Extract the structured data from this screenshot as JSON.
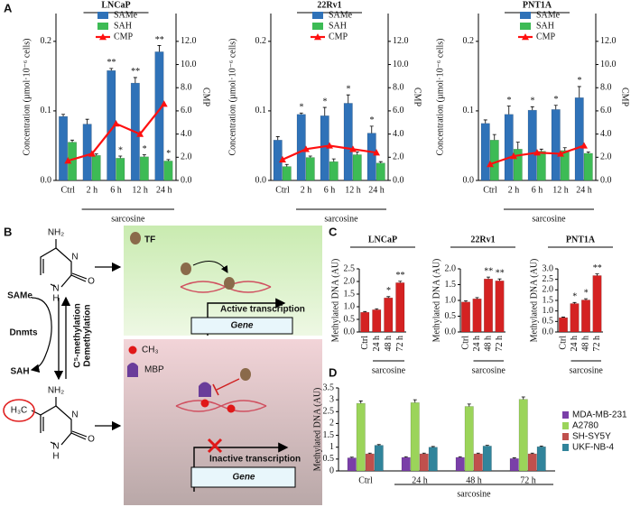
{
  "panels": [
    "A",
    "B",
    "C",
    "D"
  ],
  "diagram": {
    "tf": "TF",
    "same": "SAMe",
    "sah": "SAH",
    "dnmts": "Dnmts",
    "methylation": "C⁵-methylation",
    "demethylation": "Demethylation",
    "active": "Active transcription",
    "inactive": "Inactive transcription",
    "gene": "Gene",
    "ch3": "CH₃",
    "mbp": "MBP",
    "h3c": "H₃C",
    "nh2": "NH₂",
    "n": "N",
    "h": "H",
    "o": "O"
  },
  "chart_data": [
    {
      "type": "bar",
      "title": "LNCaP",
      "ylabel": "Concentration (µmol·10⁻⁶ cells)",
      "y2label": "CMP",
      "group_label": "sarcosine",
      "categories": [
        "Ctrl",
        "2 h",
        "6 h",
        "12 h",
        "24 h"
      ],
      "ylim": [
        0,
        0.24
      ],
      "yticks": [
        {
          "value": 0,
          "label": "0.0"
        },
        0.1,
        0.2
      ],
      "y2lim": [
        0,
        14.4
      ],
      "y2ticks": [
        {
          "value": 0,
          "label": "0.0"
        },
        {
          "value": 2,
          "label": "2.0"
        },
        {
          "value": 4,
          "label": "4.0"
        },
        {
          "value": 6,
          "label": "6.0"
        },
        {
          "value": 8,
          "label": "8.0"
        },
        {
          "value": 10,
          "label": "10.0"
        },
        {
          "value": 12,
          "label": "12.0"
        }
      ],
      "legend": "upper left",
      "grid": false,
      "series": [
        {
          "name": "SAMe",
          "color": "#2f72b8",
          "values": [
            0.092,
            0.081,
            0.158,
            0.14,
            0.185
          ],
          "errors": [
            0.003,
            0.007,
            0.003,
            0.008,
            0.009
          ],
          "annotations": [
            null,
            null,
            "**",
            "**",
            "**"
          ]
        },
        {
          "name": "SAH",
          "color": "#3dbb55",
          "values": [
            0.055,
            0.036,
            0.032,
            0.034,
            0.028
          ],
          "errors": [
            0.003,
            0.002,
            0.003,
            0.003,
            0.002
          ],
          "annotations": [
            null,
            null,
            "*",
            "*",
            "*"
          ]
        },
        {
          "name": "CMP",
          "color": "#ff1010",
          "type": "line",
          "axis": "y2",
          "values": [
            1.7,
            2.3,
            4.9,
            4.0,
            6.6
          ]
        }
      ]
    },
    {
      "type": "bar",
      "title": "22Rv1",
      "ylabel": "Concentration (µmol·10⁻⁶ cells)",
      "y2label": "CMP",
      "group_label": "sarcosine",
      "categories": [
        "Ctrl",
        "2 h",
        "6 h",
        "12 h",
        "24 h"
      ],
      "ylim": [
        0,
        0.24
      ],
      "yticks": [
        {
          "value": 0,
          "label": "0.0"
        },
        0.1,
        0.2
      ],
      "y2lim": [
        0,
        14.4
      ],
      "y2ticks": [
        {
          "value": 0,
          "label": "0.0"
        },
        {
          "value": 2,
          "label": "2.0"
        },
        {
          "value": 4,
          "label": "4.0"
        },
        {
          "value": 6,
          "label": "6.0"
        },
        {
          "value": 8,
          "label": "8.0"
        },
        {
          "value": 10,
          "label": "10.0"
        },
        {
          "value": 12,
          "label": "12.0"
        }
      ],
      "legend": "upper left",
      "grid": false,
      "series": [
        {
          "name": "SAMe",
          "color": "#2f72b8",
          "values": [
            0.058,
            0.095,
            0.093,
            0.111,
            0.068
          ],
          "errors": [
            0.005,
            0.002,
            0.012,
            0.012,
            0.01
          ],
          "annotations": [
            null,
            "*",
            "*",
            "*",
            "*"
          ]
        },
        {
          "name": "SAH",
          "color": "#3dbb55",
          "values": [
            0.02,
            0.033,
            0.027,
            0.037,
            0.025
          ],
          "errors": [
            0.003,
            0.002,
            0.004,
            0.004,
            0.002
          ]
        },
        {
          "name": "CMP",
          "color": "#ff1010",
          "type": "line",
          "axis": "y2",
          "values": [
            1.8,
            2.7,
            3.0,
            2.7,
            2.4
          ]
        }
      ]
    },
    {
      "type": "bar",
      "title": "PNT1A",
      "ylabel": "Concentration (µmol·10⁻⁶ cells)",
      "y2label": "CMP",
      "group_label": "sarcosine",
      "categories": [
        "Ctrl",
        "2 h",
        "6 h",
        "12 h",
        "24 h"
      ],
      "ylim": [
        0,
        0.24
      ],
      "yticks": [
        {
          "value": 0,
          "label": "0.0"
        },
        0.1,
        0.2
      ],
      "y2lim": [
        0,
        14.4
      ],
      "y2ticks": [
        {
          "value": 0,
          "label": "0.0"
        },
        {
          "value": 2,
          "label": "2.0"
        },
        {
          "value": 4,
          "label": "4.0"
        },
        {
          "value": 6,
          "label": "6.0"
        },
        {
          "value": 8,
          "label": "8.0"
        },
        {
          "value": 10,
          "label": "10.0"
        },
        {
          "value": 12,
          "label": "12.0"
        }
      ],
      "legend": "upper left",
      "grid": false,
      "series": [
        {
          "name": "SAMe",
          "color": "#2f72b8",
          "values": [
            0.082,
            0.095,
            0.101,
            0.102,
            0.119
          ],
          "errors": [
            0.005,
            0.012,
            0.005,
            0.006,
            0.016
          ],
          "annotations": [
            null,
            "*",
            "*",
            "*",
            "*"
          ]
        },
        {
          "name": "SAH",
          "color": "#3dbb55",
          "values": [
            0.058,
            0.045,
            0.042,
            0.043,
            0.039
          ],
          "errors": [
            0.008,
            0.01,
            0.003,
            0.004,
            0.002
          ]
        },
        {
          "name": "CMP",
          "color": "#ff1010",
          "type": "line",
          "axis": "y2",
          "values": [
            1.4,
            2.1,
            2.4,
            2.3,
            3.0
          ]
        }
      ]
    },
    {
      "type": "bar",
      "title": "LNCaP",
      "ylabel": "Methylated DNA (AU)",
      "group_label": "sarcosine",
      "categories": [
        "Ctrl",
        "24 h",
        "48 h",
        "72 h"
      ],
      "ylim": [
        0,
        2.5
      ],
      "yticks": [
        {
          "value": 0,
          "label": "0.0"
        },
        0.5,
        {
          "value": 1,
          "label": "1.0"
        },
        1.5,
        {
          "value": 2,
          "label": "2.0"
        },
        2.5
      ],
      "grid": false,
      "color": "#d42222",
      "values": [
        0.78,
        0.88,
        1.35,
        1.95
      ],
      "errors": [
        0.03,
        0.04,
        0.05,
        0.06
      ],
      "annotations": [
        null,
        null,
        "*",
        "**"
      ]
    },
    {
      "type": "bar",
      "title": "22Rv1",
      "ylabel": "Methylated DNA (AU)",
      "group_label": "sarcosine",
      "categories": [
        "Ctrl",
        "24 h",
        "48 h",
        "72 h"
      ],
      "ylim": [
        0,
        2
      ],
      "yticks": [
        {
          "value": 0,
          "label": "0.0"
        },
        0.5,
        {
          "value": 1,
          "label": "1.0"
        },
        1.5,
        {
          "value": 2,
          "label": "2.0"
        }
      ],
      "grid": false,
      "color": "#d42222",
      "values": [
        0.95,
        1.05,
        1.68,
        1.62
      ],
      "errors": [
        0.04,
        0.04,
        0.06,
        0.06
      ],
      "annotations": [
        null,
        null,
        "**",
        "**"
      ]
    },
    {
      "type": "bar",
      "title": "PNT1A",
      "ylabel": "Methylated DNA (AU)",
      "group_label": "sarcosine",
      "categories": [
        "Ctrl",
        "24 h",
        "48 h",
        "72 h"
      ],
      "ylim": [
        0,
        3
      ],
      "yticks": [
        {
          "value": 0,
          "label": "0.0"
        },
        0.5,
        {
          "value": 1,
          "label": "1.0"
        },
        1.5,
        {
          "value": 2,
          "label": "2.0"
        },
        2.5,
        {
          "value": 3,
          "label": "3.0"
        }
      ],
      "grid": false,
      "color": "#d42222",
      "values": [
        0.68,
        1.35,
        1.52,
        2.68
      ],
      "errors": [
        0.03,
        0.05,
        0.06,
        0.08
      ],
      "annotations": [
        null,
        "*",
        "*",
        "**"
      ]
    },
    {
      "type": "bar",
      "ylabel": "Methylated DNA (AU)",
      "group_label": "sarcosine",
      "categories": [
        "Ctrl",
        "24 h",
        "48 h",
        "72 h"
      ],
      "ylim": [
        0,
        3.5
      ],
      "yticks": [
        0,
        0.5,
        1,
        1.5,
        2,
        2.5,
        3,
        3.5
      ],
      "legend": "right",
      "grid": false,
      "series": [
        {
          "name": "MDA-MB-231",
          "color": "#7a3fa8",
          "values": [
            0.55,
            0.57,
            0.57,
            0.52
          ],
          "errors": [
            0.03,
            0.03,
            0.03,
            0.03
          ]
        },
        {
          "name": "A2780",
          "color": "#9bd45a",
          "values": [
            2.85,
            2.88,
            2.72,
            3.02
          ],
          "errors": [
            0.1,
            0.12,
            0.1,
            0.1
          ]
        },
        {
          "name": "SH-SY5Y",
          "color": "#c0504d",
          "values": [
            0.72,
            0.72,
            0.72,
            0.72
          ],
          "errors": [
            0.03,
            0.03,
            0.03,
            0.03
          ]
        },
        {
          "name": "UKF-NB-4",
          "color": "#31849b",
          "values": [
            1.08,
            1.0,
            1.05,
            1.02
          ],
          "errors": [
            0.03,
            0.03,
            0.03,
            0.03
          ]
        }
      ]
    }
  ]
}
